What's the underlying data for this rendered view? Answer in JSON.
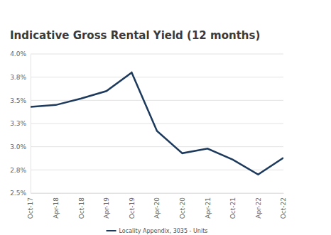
{
  "chart_data": {
    "type": "line",
    "title": "Indicative Gross Rental Yield (12 months)",
    "categories": [
      "Oct-17",
      "Apr-18",
      "Oct-18",
      "Apr-19",
      "Oct-19",
      "Apr-20",
      "Oct-20",
      "Apr-21",
      "Oct-21",
      "Apr-22",
      "Oct-22"
    ],
    "series": [
      {
        "name": "Locality Appendix, 3035 - Units",
        "color": "#1d3a5c",
        "values": [
          3.43,
          3.45,
          3.52,
          3.6,
          3.8,
          3.17,
          2.93,
          2.98,
          2.86,
          2.7,
          2.88
        ]
      }
    ],
    "ylim": [
      2.5,
      4.0
    ],
    "yticks": [
      {
        "value": 2.5,
        "label": "2.5%"
      },
      {
        "value": 2.75,
        "label": "2.8%"
      },
      {
        "value": 3.0,
        "label": "3.0%"
      },
      {
        "value": 3.25,
        "label": "3.3%"
      },
      {
        "value": 3.5,
        "label": "3.5%"
      },
      {
        "value": 3.75,
        "label": "3.8%"
      },
      {
        "value": 4.0,
        "label": "4.0%"
      }
    ],
    "grid": true,
    "legend": "bottom"
  }
}
